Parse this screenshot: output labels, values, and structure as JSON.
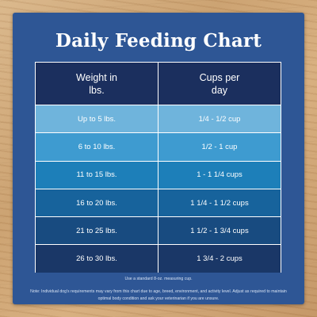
{
  "title": "Daily Feeding Chart",
  "table": {
    "headers": [
      "Weight in\nlbs.",
      "Cups per\nday"
    ],
    "rows": [
      {
        "weight": "Up to 5 lbs.",
        "cups": "1/4 - 1/2 cup",
        "bg": "#6fb4dc"
      },
      {
        "weight": "6 to 10 lbs.",
        "cups": "1/2 - 1 cup",
        "bg": "#3e9bd0"
      },
      {
        "weight": "11 to 15 lbs.",
        "cups": "1 - 1 1/4 cups",
        "bg": "#1d7fb9"
      },
      {
        "weight": "16 to 20 lbs.",
        "cups": "1 1/4 - 1 1/2 cups",
        "bg": "#17639c"
      },
      {
        "weight": "21 to 25 lbs.",
        "cups": "1 1/2 - 1 3/4 cups",
        "bg": "#184b80"
      },
      {
        "weight": "26 to 30 lbs.",
        "cups": "1 3/4 - 2 cups",
        "bg": "#1a3767"
      }
    ]
  },
  "notes": {
    "measure": "Use a standard 8-oz. measuring cup.",
    "disclaimer": "Note: Individual dog's requirements may vary from this chart due to age, breed, environment, and activity level. Adjust as required to maintain optimal body condition and ask your veterinarian if you are unsure."
  },
  "colors": {
    "card": "#2e5695",
    "header": "#1b2f5e",
    "text": "#ffffff"
  }
}
